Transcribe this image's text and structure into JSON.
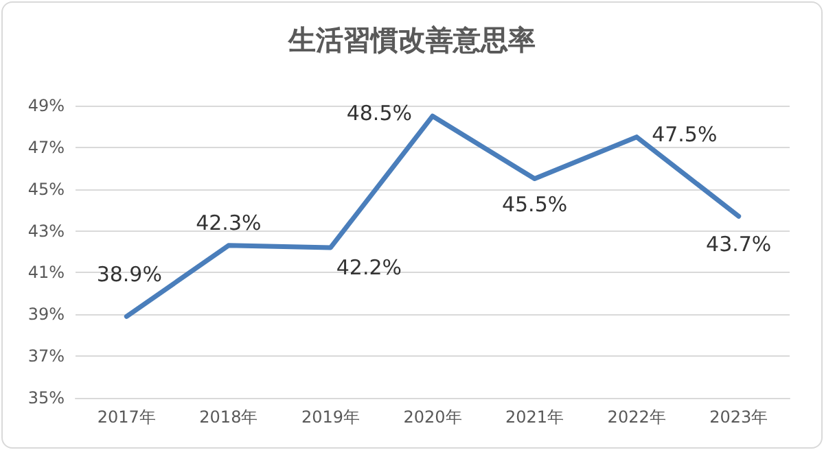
{
  "chart_data": {
    "type": "line",
    "title": "生活習慣改善意思率",
    "categories": [
      "2017年",
      "2018年",
      "2019年",
      "2020年",
      "2021年",
      "2022年",
      "2023年"
    ],
    "series": [
      {
        "color": "#4a7ebb",
        "values": [
          38.9,
          42.3,
          42.2,
          48.5,
          45.5,
          47.5,
          43.7
        ],
        "value_labels": [
          "38.9%",
          "42.3%",
          "42.2%",
          "48.5%",
          "45.5%",
          "47.5%",
          "43.7%"
        ]
      }
    ],
    "ylim": [
      35,
      49
    ],
    "yticks": [
      {
        "value": 35,
        "label": "35%"
      },
      {
        "value": 37,
        "label": "37%"
      },
      {
        "value": 39,
        "label": "39%"
      },
      {
        "value": 41,
        "label": "41%"
      },
      {
        "value": 43,
        "label": "43%"
      },
      {
        "value": 45,
        "label": "45%"
      },
      {
        "value": 47,
        "label": "47%"
      },
      {
        "value": 49,
        "label": "49%"
      }
    ],
    "grid": "y",
    "marker": "none",
    "line_style": "solid"
  }
}
